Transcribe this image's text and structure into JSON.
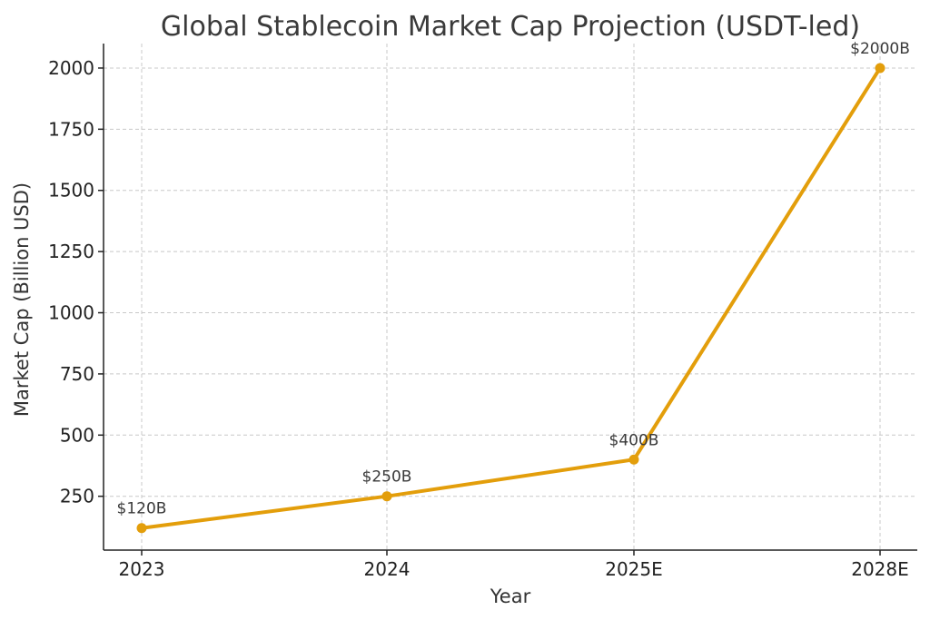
{
  "chart_data": {
    "type": "line",
    "title": "Global Stablecoin Market Cap Projection (USDT-led)",
    "xlabel": "Year",
    "ylabel": "Market Cap (Billion USD)",
    "categories": [
      "2023",
      "2024",
      "2025E",
      "2028E"
    ],
    "series": [
      {
        "values": [
          120,
          250,
          400,
          2000
        ],
        "labels": [
          "$120B",
          "$250B",
          "$400B",
          "$2000B"
        ],
        "color": "#e39e0b"
      }
    ],
    "yticks": [
      250,
      500,
      750,
      1000,
      1250,
      1500,
      1750,
      2000
    ],
    "ylim": [
      30,
      2100
    ],
    "grid": true,
    "legend": "none"
  }
}
